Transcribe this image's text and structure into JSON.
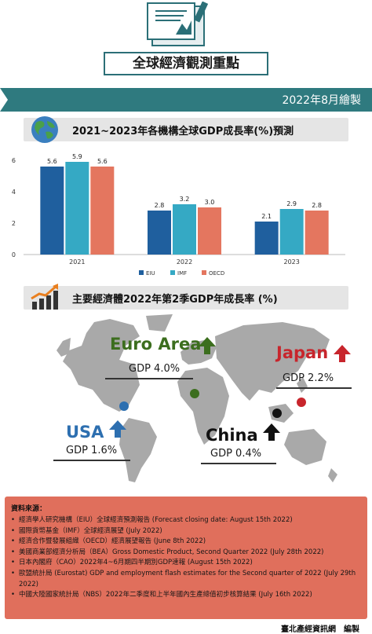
{
  "header": {
    "title": "全球經濟觀測重點",
    "icon": "notebook-icon"
  },
  "date_band": {
    "text": "2022年8月繪製"
  },
  "section1": {
    "title": "2021~2023年各機構全球GDP成長率(%)預測",
    "icon": "globe-icon"
  },
  "section2": {
    "title": "主要經濟體2022年第2季GDP年成長率 (%)",
    "icon": "growth-chart-icon"
  },
  "chart_data": {
    "type": "bar",
    "categories": [
      "2021",
      "2022",
      "2023"
    ],
    "series": [
      {
        "name": "EIU",
        "values": [
          5.6,
          2.8,
          2.1
        ],
        "color": "#1f5f9e"
      },
      {
        "name": "IMF",
        "values": [
          5.9,
          3.2,
          2.9
        ],
        "color": "#35a9c4"
      },
      {
        "name": "OECD",
        "values": [
          5.6,
          3.0,
          2.8
        ],
        "color": "#e4765f"
      }
    ],
    "yticks": [
      "0",
      "2",
      "4",
      "6"
    ],
    "ylim": [
      0,
      6.6
    ],
    "legend": "bottom-center",
    "grid": false
  },
  "economies": [
    {
      "name": "Euro Area",
      "gdp": "GDP 4.0%",
      "color": "#3c6e1e",
      "direction": "up"
    },
    {
      "name": "Japan",
      "gdp": "GDP 2.2%",
      "color": "#c8252c",
      "direction": "up"
    },
    {
      "name": "USA",
      "gdp": "GDP 1.6%",
      "color": "#2d6fb0",
      "direction": "up"
    },
    {
      "name": "China",
      "gdp": "GDP 0.4%",
      "color": "#111111",
      "direction": "up"
    }
  ],
  "sources": {
    "title": "資料來源：",
    "items": [
      "經濟學人研究機構（EIU）全球經濟預測報告 (Forecast closing date: August 15th 2022)",
      "國際貨幣基金（IMF）全球經濟展望 (July 2022)",
      "經濟合作暨發展組織（OECD）經濟展望報告 (June 8th 2022)",
      "美國商業部經濟分析局（BEA）Gross Domestic Product, Second Quarter 2022 (July 28th 2022)",
      "日本內閣府（CAO）2022年4~6月期四半期別GDP速報 (August 15th 2022)",
      "歐盟統計局 (Eurostat) GDP and employment flash estimates for the Second quarter of 2022 (July 29th 2022)",
      "中國大陸國家統計局（NBS）2022年二季度和上半年國內生產總值初步核算結果 (July 16th 2022)"
    ]
  },
  "footer": {
    "credit": "臺北產經資訊網　編製"
  }
}
